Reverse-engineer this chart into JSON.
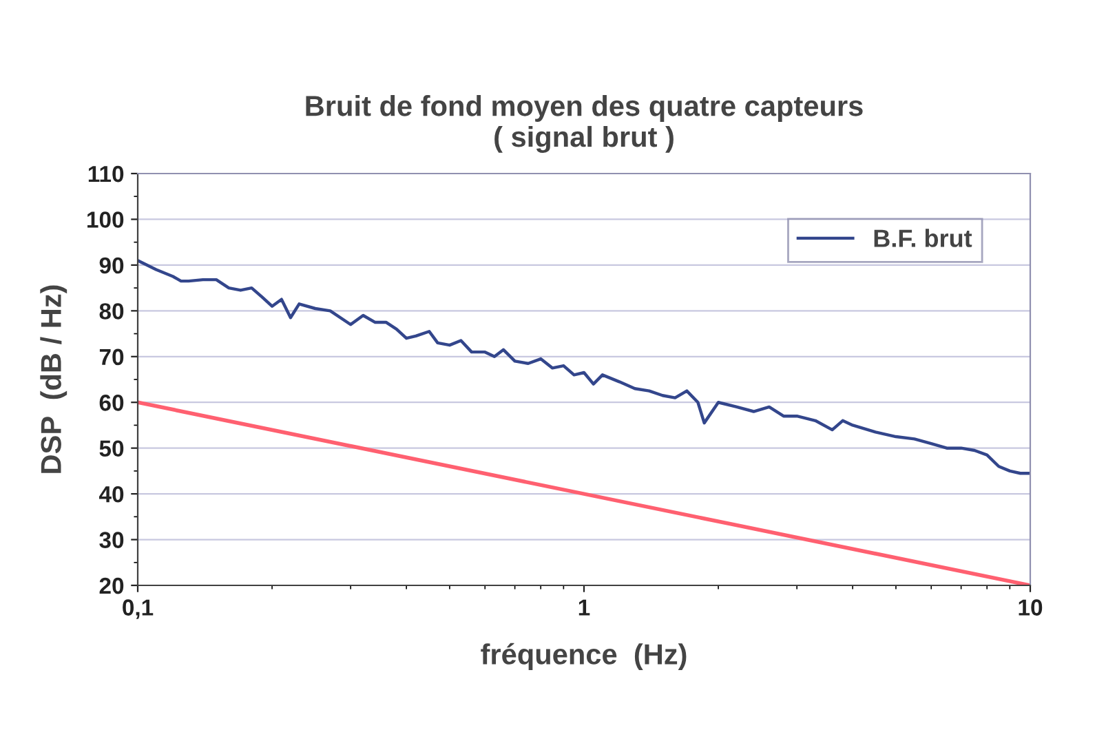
{
  "chart_data": {
    "type": "line",
    "title": "Bruit de fond moyen des quatre capteurs\n( signal brut )",
    "xlabel": "fréquence  (Hz)",
    "ylabel": "DSP  (dB / Hz)",
    "log": "x",
    "xlim": [
      0.1,
      10
    ],
    "xticks": [
      {
        "value": 0.1,
        "label": "0,1"
      },
      1,
      10
    ],
    "ylim": [
      20,
      110
    ],
    "yticks": [
      20,
      30,
      40,
      50,
      60,
      70,
      80,
      90,
      100,
      110
    ],
    "grid": "y",
    "legend": "top right",
    "marker": "none",
    "line_style": "solid",
    "series": [
      {
        "name": "B.F. brut",
        "color": "#33468c",
        "x": [
          0.1,
          0.11,
          0.12,
          0.125,
          0.13,
          0.14,
          0.15,
          0.16,
          0.17,
          0.18,
          0.19,
          0.2,
          0.21,
          0.22,
          0.23,
          0.25,
          0.27,
          0.3,
          0.32,
          0.34,
          0.36,
          0.38,
          0.4,
          0.42,
          0.45,
          0.47,
          0.5,
          0.53,
          0.56,
          0.6,
          0.63,
          0.66,
          0.7,
          0.75,
          0.8,
          0.85,
          0.9,
          0.95,
          1.0,
          1.05,
          1.1,
          1.2,
          1.3,
          1.4,
          1.5,
          1.6,
          1.7,
          1.8,
          1.86,
          2.0,
          2.2,
          2.4,
          2.6,
          2.8,
          3.0,
          3.3,
          3.6,
          3.8,
          4.0,
          4.5,
          5.0,
          5.5,
          6.0,
          6.5,
          7.0,
          7.5,
          8.0,
          8.5,
          9.0,
          9.5,
          10
        ],
        "values": [
          91,
          89,
          87.5,
          86.5,
          86.5,
          86.8,
          86.8,
          85,
          84.5,
          85,
          83,
          81,
          82.5,
          78.5,
          81.5,
          80.5,
          80,
          77,
          79,
          77.5,
          77.5,
          76,
          74,
          74.5,
          75.5,
          73,
          72.5,
          73.5,
          71,
          71,
          70,
          71.5,
          69,
          68.5,
          69.5,
          67.5,
          68,
          66,
          66.5,
          64,
          66,
          64.5,
          63,
          62.5,
          61.5,
          61,
          62.5,
          60,
          55.5,
          60,
          59,
          58,
          59,
          57,
          57,
          56,
          54,
          56,
          55,
          53.5,
          52.5,
          52,
          51,
          50,
          50,
          49.5,
          48.5,
          46,
          45,
          44.5,
          44.5
        ]
      },
      {
        "color": "#ff6070",
        "x": [
          0.1,
          10
        ],
        "values": [
          60,
          20
        ]
      }
    ]
  }
}
